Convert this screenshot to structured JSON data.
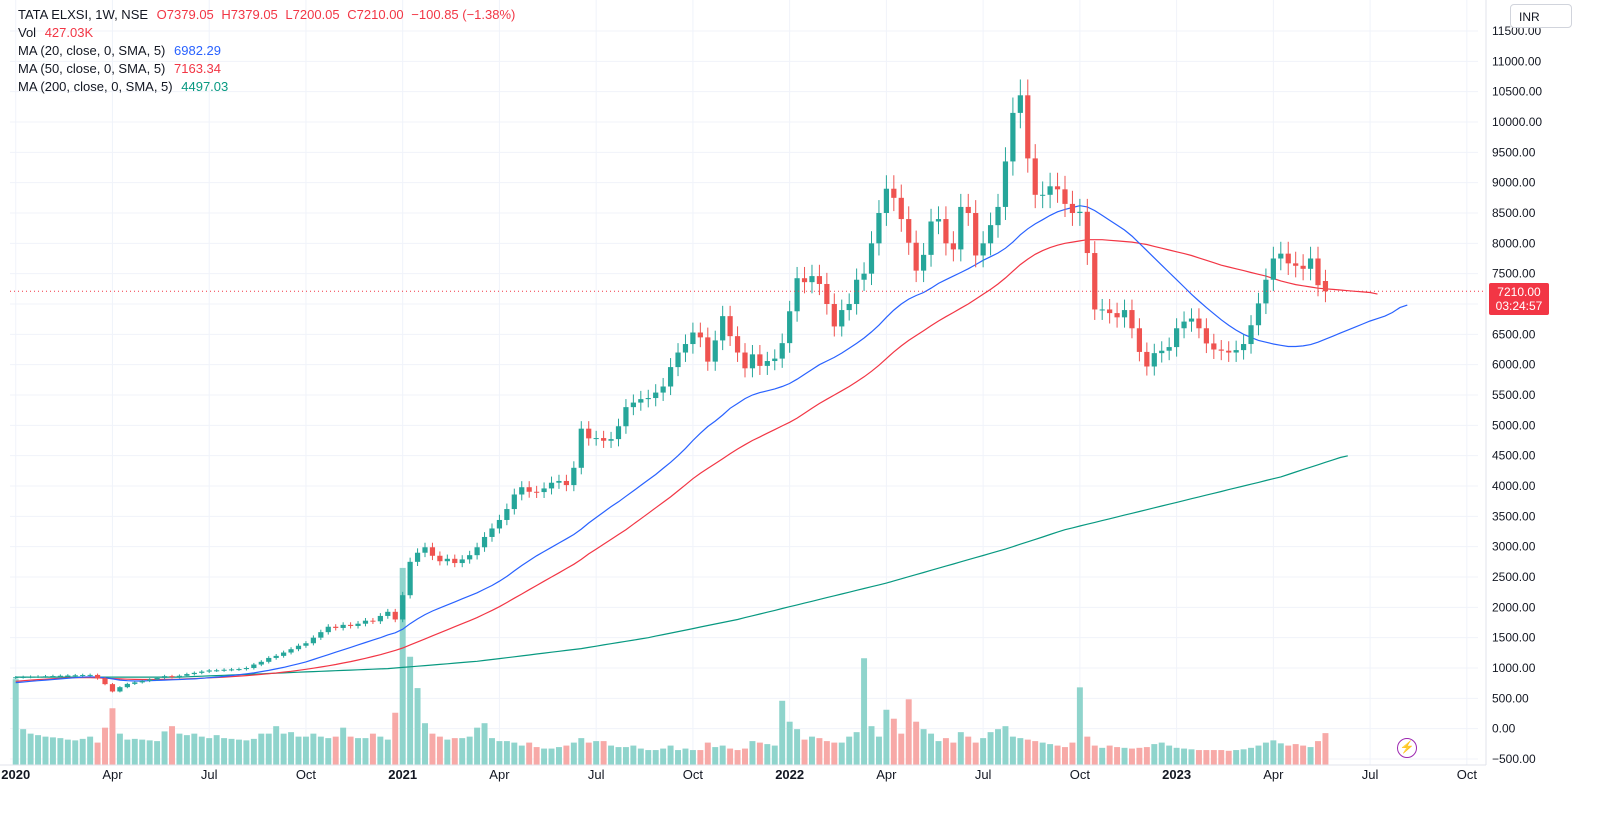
{
  "header": {
    "symbol_line": "TATA ELXSI, 1W, NSE",
    "open": "O7379.05",
    "high": "H7379.05",
    "low": "L7200.05",
    "close": "C7210.00",
    "change": "−100.85 (−1.38%)",
    "vol_label": "Vol",
    "vol_value": "427.03K",
    "ma20_label": "MA (20, close, 0, SMA, 5)",
    "ma20_value": "6982.29",
    "ma50_label": "MA (50, close, 0, SMA, 5)",
    "ma50_value": "7163.34",
    "ma200_label": "MA (200, close, 0, SMA, 5)",
    "ma200_value": "4497.03"
  },
  "currency": "INR",
  "price_tag": {
    "price": "7210.00",
    "countdown": "03:24:57"
  },
  "colors": {
    "up": "#26a69a",
    "down": "#ef5350",
    "vol_up": "#8fd4cc",
    "vol_down": "#f7a9a7",
    "ma20": "#2962ff",
    "ma50": "#f23645",
    "ma200": "#089981",
    "grid": "#f0f3fa",
    "axis_text": "#131722"
  },
  "chart_data": {
    "type": "candlestick",
    "title": "TATA ELXSI, 1W, NSE",
    "y_axis": {
      "ylim": [
        -500,
        11500
      ],
      "ticks": [
        "11500.00",
        "11000.00",
        "10500.00",
        "10000.00",
        "9500.00",
        "9000.00",
        "8500.00",
        "8000.00",
        "7500.00",
        "7000.00",
        "6500.00",
        "6000.00",
        "5500.00",
        "5000.00",
        "4500.00",
        "4000.00",
        "3500.00",
        "3000.00",
        "2500.00",
        "2000.00",
        "1500.00",
        "1000.00",
        "500.00",
        "0.00",
        "−500.00"
      ],
      "position": "right"
    },
    "x_axis": {
      "labels": [
        {
          "label": "2020",
          "bold": true,
          "week": 0
        },
        {
          "label": "Apr",
          "bold": false,
          "week": 13
        },
        {
          "label": "Jul",
          "bold": false,
          "week": 26
        },
        {
          "label": "Oct",
          "bold": false,
          "week": 39
        },
        {
          "label": "2021",
          "bold": true,
          "week": 52
        },
        {
          "label": "Apr",
          "bold": false,
          "week": 65
        },
        {
          "label": "Jul",
          "bold": false,
          "week": 78
        },
        {
          "label": "Oct",
          "bold": false,
          "week": 91
        },
        {
          "label": "2022",
          "bold": true,
          "week": 104
        },
        {
          "label": "Apr",
          "bold": false,
          "week": 117
        },
        {
          "label": "Jul",
          "bold": false,
          "week": 130
        },
        {
          "label": "Oct",
          "bold": false,
          "week": 143
        },
        {
          "label": "2023",
          "bold": true,
          "week": 156
        },
        {
          "label": "Apr",
          "bold": false,
          "week": 169
        },
        {
          "label": "Jul",
          "bold": false,
          "week": 182
        },
        {
          "label": "Oct",
          "bold": false,
          "week": 195
        }
      ],
      "week_range": [
        -0.5,
        196.5
      ]
    },
    "current_price": 7210.0,
    "closes": [
      847,
      852,
      856,
      860,
      864,
      868,
      872,
      876,
      880,
      884,
      886,
      828,
      734,
      613,
      684,
      738,
      763,
      787,
      812,
      836,
      866,
      851,
      872,
      900,
      920,
      941,
      960,
      962,
      971,
      977,
      982,
      1000,
      1057,
      1102,
      1166,
      1200,
      1255,
      1310,
      1367,
      1408,
      1500,
      1591,
      1680,
      1660,
      1711,
      1693,
      1730,
      1780,
      1770,
      1858,
      1926,
      1800,
      2200,
      2750,
      2900,
      2990,
      2850,
      2760,
      2800,
      2730,
      2790,
      2860,
      2990,
      3160,
      3300,
      3440,
      3620,
      3860,
      3980,
      3905,
      3900,
      3960,
      4054,
      4083,
      4015,
      4300,
      4945,
      4785,
      4790,
      4746,
      4773,
      4985,
      5300,
      5375,
      5432,
      5450,
      5540,
      5640,
      5960,
      6200,
      6340,
      6530,
      6450,
      6050,
      6400,
      6800,
      6470,
      6200,
      5940,
      6170,
      5980,
      6060,
      6100,
      6355,
      6880,
      7425,
      7360,
      7460,
      7330,
      7000,
      6630,
      6900,
      7000,
      7400,
      7500,
      8000,
      8500,
      8900,
      8750,
      8400,
      8010,
      7550,
      7810,
      8360,
      8400,
      8000,
      7900,
      8600,
      8500,
      7800,
      8000,
      8300,
      8600,
      9350,
      10150,
      10440,
      9400,
      8800,
      8800,
      8940,
      8890,
      8650,
      8500,
      8520,
      7840,
      6910,
      6910,
      6850,
      6780,
      6900,
      6600,
      6210,
      5970,
      6190,
      6230,
      6290,
      6600,
      6710,
      6760,
      6600,
      6350,
      6250,
      6230,
      6200,
      6240,
      6340,
      6650,
      7010,
      7400,
      7750,
      7830,
      7670,
      7630,
      7580,
      7750,
      7310,
      7210
    ],
    "opens": [
      840,
      847,
      852,
      856,
      860,
      864,
      868,
      872,
      876,
      880,
      884,
      886,
      828,
      734,
      613,
      684,
      738,
      763,
      787,
      812,
      836,
      866,
      851,
      872,
      900,
      920,
      941,
      960,
      962,
      971,
      977,
      982,
      1000,
      1057,
      1102,
      1166,
      1200,
      1255,
      1310,
      1367,
      1408,
      1500,
      1591,
      1680,
      1660,
      1711,
      1693,
      1730,
      1780,
      1770,
      1858,
      1926,
      1800,
      2200,
      2750,
      2900,
      2990,
      2850,
      2760,
      2800,
      2730,
      2790,
      2860,
      2990,
      3160,
      3300,
      3440,
      3620,
      3860,
      3980,
      3905,
      3900,
      3960,
      4054,
      4083,
      4015,
      4300,
      4945,
      4785,
      4790,
      4746,
      4773,
      4985,
      5300,
      5375,
      5432,
      5450,
      5540,
      5640,
      5960,
      6200,
      6340,
      6530,
      6450,
      6050,
      6400,
      6800,
      6470,
      6200,
      5940,
      6170,
      5980,
      6060,
      6100,
      6355,
      6880,
      7425,
      7360,
      7460,
      7330,
      7000,
      6630,
      6900,
      7000,
      7400,
      7500,
      8000,
      8500,
      8900,
      8750,
      8400,
      8010,
      7550,
      7810,
      8360,
      8400,
      8000,
      7900,
      8600,
      8500,
      7800,
      8000,
      8300,
      8600,
      9350,
      10150,
      10440,
      9400,
      8800,
      8800,
      8940,
      8890,
      8650,
      8500,
      8520,
      7840,
      6910,
      6910,
      6850,
      6780,
      6900,
      6600,
      6210,
      5970,
      6190,
      6230,
      6290,
      6600,
      6710,
      6760,
      6600,
      6350,
      6250,
      6230,
      6200,
      6240,
      6340,
      6650,
      7010,
      7400,
      7750,
      7830,
      7670,
      7630,
      7580,
      7750,
      7379.05
    ],
    "volumes": [
      1150,
      480,
      420,
      400,
      380,
      370,
      360,
      340,
      330,
      350,
      380,
      300,
      500,
      760,
      420,
      340,
      350,
      340,
      330,
      320,
      450,
      520,
      420,
      400,
      420,
      380,
      360,
      400,
      360,
      350,
      340,
      330,
      350,
      420,
      420,
      520,
      420,
      440,
      380,
      380,
      420,
      380,
      360,
      380,
      500,
      380,
      360,
      360,
      420,
      380,
      340,
      700,
      2640,
      1450,
      1030,
      560,
      420,
      380,
      340,
      360,
      360,
      380,
      500,
      560,
      360,
      320,
      320,
      300,
      260,
      300,
      240,
      220,
      220,
      240,
      260,
      300,
      360,
      300,
      320,
      320,
      260,
      240,
      240,
      260,
      220,
      200,
      200,
      220,
      260,
      200,
      220,
      200,
      200,
      300,
      240,
      260,
      220,
      200,
      220,
      320,
      300,
      280,
      260,
      860,
      580,
      480,
      340,
      380,
      360,
      320,
      300,
      300,
      380,
      440,
      1430,
      520,
      380,
      740,
      620,
      420,
      880,
      580,
      480,
      420,
      320,
      360,
      300,
      440,
      380,
      300,
      360,
      440,
      480,
      520,
      380,
      360,
      340,
      320,
      300,
      280,
      260,
      240,
      300,
      1040,
      380,
      260,
      230,
      260,
      240,
      230,
      220,
      230,
      240,
      280,
      300,
      260,
      230,
      220,
      210,
      200,
      200,
      200,
      200,
      190,
      200,
      210,
      230,
      260,
      300,
      330,
      290,
      260,
      280,
      260,
      240,
      320,
      427
    ],
    "ma20": [
      760,
      770,
      780,
      790,
      800,
      810,
      820,
      830,
      840,
      850,
      855,
      850,
      840,
      820,
      800,
      790,
      785,
      785,
      790,
      795,
      800,
      805,
      810,
      815,
      820,
      830,
      840,
      850,
      862,
      875,
      890,
      905,
      920,
      940,
      960,
      985,
      1010,
      1040,
      1070,
      1100,
      1140,
      1180,
      1220,
      1260,
      1300,
      1340,
      1380,
      1420,
      1460,
      1500,
      1545,
      1580,
      1640,
      1730,
      1810,
      1880,
      1940,
      1990,
      2040,
      2090,
      2140,
      2190,
      2240,
      2300,
      2360,
      2430,
      2510,
      2600,
      2690,
      2770,
      2850,
      2920,
      2990,
      3060,
      3130,
      3200,
      3290,
      3390,
      3480,
      3570,
      3660,
      3740,
      3830,
      3920,
      4010,
      4100,
      4190,
      4290,
      4390,
      4500,
      4620,
      4750,
      4870,
      4980,
      5070,
      5170,
      5280,
      5360,
      5440,
      5500,
      5540,
      5570,
      5600,
      5640,
      5690,
      5760,
      5840,
      5920,
      6000,
      6060,
      6120,
      6190,
      6270,
      6350,
      6440,
      6540,
      6650,
      6780,
      6900,
      7000,
      7080,
      7140,
      7190,
      7260,
      7340,
      7400,
      7460,
      7520,
      7580,
      7650,
      7720,
      7780,
      7840,
      7920,
      8020,
      8140,
      8240,
      8320,
      8390,
      8460,
      8520,
      8560,
      8590,
      8620,
      8600,
      8540,
      8460,
      8380,
      8300,
      8220,
      8120,
      8000,
      7880,
      7760,
      7640,
      7520,
      7400,
      7280,
      7160,
      7050,
      6940,
      6840,
      6740,
      6650,
      6570,
      6500,
      6450,
      6400,
      6370,
      6340,
      6320,
      6300,
      6300,
      6310,
      6330,
      6370,
      6420,
      6470,
      6520,
      6570,
      6620,
      6670,
      6720,
      6760,
      6800,
      6860,
      6940,
      6982.29
    ],
    "ma50": [
      780,
      790,
      800,
      808,
      816,
      824,
      830,
      836,
      840,
      842,
      840,
      836,
      832,
      826,
      820,
      816,
      812,
      810,
      810,
      810,
      812,
      814,
      816,
      820,
      826,
      832,
      838,
      844,
      850,
      858,
      866,
      874,
      884,
      894,
      906,
      918,
      932,
      946,
      962,
      978,
      996,
      1016,
      1036,
      1058,
      1082,
      1106,
      1132,
      1160,
      1190,
      1220,
      1254,
      1290,
      1330,
      1380,
      1430,
      1480,
      1530,
      1580,
      1630,
      1680,
      1730,
      1780,
      1830,
      1890,
      1950,
      2010,
      2080,
      2150,
      2220,
      2290,
      2360,
      2430,
      2500,
      2570,
      2640,
      2710,
      2790,
      2880,
      2960,
      3040,
      3120,
      3200,
      3280,
      3370,
      3460,
      3550,
      3640,
      3730,
      3820,
      3920,
      4020,
      4120,
      4210,
      4290,
      4370,
      4450,
      4530,
      4610,
      4680,
      4750,
      4810,
      4870,
      4930,
      4990,
      5050,
      5120,
      5200,
      5280,
      5360,
      5430,
      5500,
      5570,
      5640,
      5720,
      5800,
      5890,
      5990,
      6100,
      6210,
      6310,
      6400,
      6480,
      6560,
      6640,
      6720,
      6790,
      6860,
      6930,
      7000,
      7080,
      7160,
      7240,
      7330,
      7430,
      7540,
      7650,
      7740,
      7820,
      7880,
      7930,
      7970,
      8000,
      8020,
      8040,
      8060,
      8060,
      8060,
      8050,
      8040,
      8030,
      8020,
      8000,
      7980,
      7950,
      7920,
      7890,
      7860,
      7830,
      7800,
      7760,
      7720,
      7680,
      7640,
      7610,
      7580,
      7550,
      7520,
      7490,
      7460,
      7420,
      7380,
      7350,
      7320,
      7300,
      7280,
      7260,
      7250,
      7240,
      7230,
      7220,
      7210,
      7200,
      7190,
      7163.34
    ],
    "ma200": [
      850,
      850,
      850,
      850,
      850,
      850,
      850,
      850,
      850,
      850,
      850,
      850,
      850,
      850,
      850,
      850,
      850,
      850,
      850,
      850,
      850,
      850,
      850,
      855,
      860,
      865,
      870,
      875,
      880,
      885,
      890,
      895,
      900,
      905,
      910,
      915,
      920,
      925,
      930,
      935,
      940,
      945,
      950,
      955,
      960,
      965,
      970,
      975,
      980,
      985,
      990,
      1000,
      1010,
      1020,
      1030,
      1040,
      1050,
      1060,
      1070,
      1080,
      1090,
      1100,
      1110,
      1125,
      1140,
      1155,
      1170,
      1185,
      1200,
      1215,
      1230,
      1245,
      1260,
      1275,
      1290,
      1305,
      1320,
      1340,
      1360,
      1380,
      1400,
      1420,
      1440,
      1460,
      1480,
      1500,
      1525,
      1550,
      1575,
      1600,
      1625,
      1650,
      1675,
      1700,
      1725,
      1750,
      1775,
      1800,
      1830,
      1860,
      1890,
      1920,
      1950,
      1980,
      2010,
      2040,
      2070,
      2100,
      2130,
      2160,
      2190,
      2220,
      2250,
      2280,
      2310,
      2340,
      2370,
      2400,
      2435,
      2470,
      2505,
      2540,
      2575,
      2610,
      2645,
      2680,
      2715,
      2750,
      2785,
      2820,
      2855,
      2890,
      2925,
      2960,
      3000,
      3040,
      3080,
      3120,
      3160,
      3200,
      3240,
      3280,
      3310,
      3340,
      3370,
      3400,
      3430,
      3460,
      3490,
      3520,
      3550,
      3580,
      3610,
      3640,
      3670,
      3700,
      3730,
      3760,
      3790,
      3820,
      3850,
      3880,
      3910,
      3940,
      3970,
      4000,
      4030,
      4060,
      4090,
      4120,
      4150,
      4190,
      4230,
      4270,
      4310,
      4350,
      4390,
      4430,
      4470,
      4497.03
    ]
  }
}
